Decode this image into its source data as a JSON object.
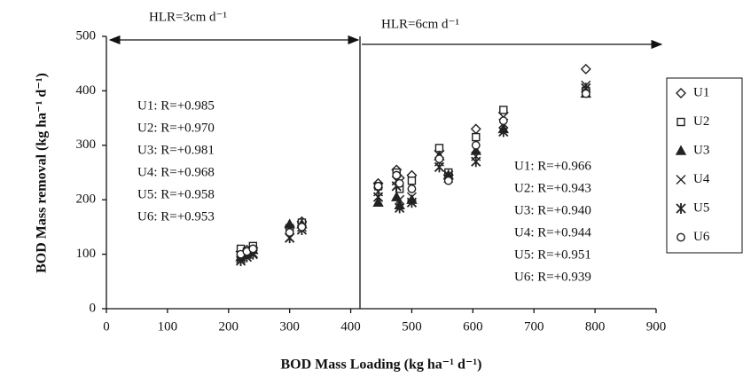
{
  "chart_data": {
    "type": "scatter",
    "x_label": "BOD Mass Loading (kg ha⁻¹ d⁻¹)",
    "y_label": "BOD Mass removal (kg ha⁻¹ d⁻¹)",
    "x": [
      220,
      230,
      240,
      300,
      320,
      445,
      475,
      480,
      500,
      545,
      560,
      605,
      650,
      785
    ],
    "series": [
      {
        "name": "U1",
        "marker": "diamond",
        "filled": false,
        "color": "#222",
        "values": [
          105,
          108,
          112,
          150,
          160,
          230,
          255,
          240,
          245,
          290,
          245,
          330,
          360,
          440
        ]
      },
      {
        "name": "U2",
        "marker": "square",
        "filled": false,
        "color": "#222",
        "values": [
          110,
          105,
          115,
          148,
          158,
          225,
          250,
          220,
          235,
          295,
          250,
          315,
          365,
          400
        ]
      },
      {
        "name": "U3",
        "marker": "triangle",
        "filled": true,
        "color": "#222",
        "values": [
          95,
          100,
          108,
          155,
          155,
          195,
          205,
          190,
          200,
          280,
          245,
          290,
          330,
          395
        ]
      },
      {
        "name": "U4",
        "marker": "x",
        "filled": false,
        "color": "#222",
        "values": [
          92,
          100,
          102,
          145,
          150,
          215,
          235,
          200,
          205,
          270,
          240,
          280,
          340,
          410
        ]
      },
      {
        "name": "U5",
        "marker": "asterisk",
        "filled": false,
        "color": "#222",
        "values": [
          88,
          95,
          100,
          130,
          145,
          205,
          225,
          185,
          195,
          260,
          245,
          270,
          325,
          405
        ]
      },
      {
        "name": "U6",
        "marker": "circle",
        "filled": false,
        "color": "#222",
        "values": [
          100,
          105,
          110,
          140,
          150,
          225,
          245,
          230,
          220,
          275,
          235,
          300,
          345,
          395
        ]
      }
    ],
    "xlim": [
      0,
      900
    ],
    "xticks": [
      0,
      100,
      200,
      300,
      400,
      500,
      600,
      700,
      800,
      900
    ],
    "ylim": [
      0,
      500
    ],
    "yticks": [
      0,
      100,
      200,
      300,
      400,
      500
    ],
    "annotations": {
      "left_header": "HLR=3cm d⁻¹",
      "right_header": "HLR=6cm d⁻¹",
      "left": [
        "U1: R=+0.985",
        "U2: R=+0.970",
        "U3: R=+0.981",
        "U4: R=+0.968",
        "U5: R=+0.958",
        "U6: R=+0.953"
      ],
      "right": [
        "U1: R=+0.966",
        "U2: R=+0.943",
        "U3: R=+0.940",
        "U4: R=+0.944",
        "U5: R=+0.951",
        "U6: R=+0.939"
      ]
    }
  }
}
